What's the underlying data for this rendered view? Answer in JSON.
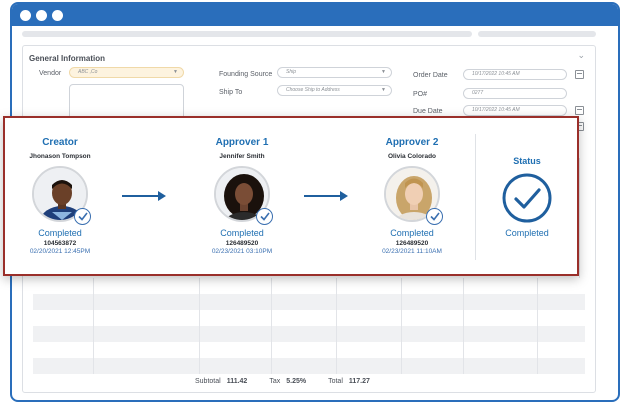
{
  "form": {
    "section_title": "General Information",
    "vendor_label": "Vendor",
    "vendor_value": "ABC ,Co",
    "founding_source_label": "Founding Source",
    "founding_source_value": "Ship",
    "ship_to_label": "Ship To",
    "ship_to_placeholder": "Choose Ship to Address",
    "order_date_label": "Order Date",
    "order_date_value": "10/17/2022  10:45 AM",
    "po_label": "PO#",
    "po_value": "0277",
    "due_date_label": "Due Date",
    "due_date_value": "10/17/2022  10:45 AM"
  },
  "totals": {
    "subtotal_label": "Subtotal",
    "subtotal_value": "111.42",
    "tax_label": "Tax",
    "tax_value": "5.25%",
    "total_label": "Total",
    "total_value": "117.27"
  },
  "workflow": {
    "creator": {
      "role": "Creator",
      "name": "Jhonason Tompson",
      "state": "Completed",
      "code": "104563872",
      "time": "02/20/2021 12:45PM"
    },
    "approver1": {
      "role": "Approver 1",
      "name": "Jennifer Smith",
      "state": "Completed",
      "code": "126489520",
      "time": "02/23/2021 03:10PM"
    },
    "approver2": {
      "role": "Approver 2",
      "name": "Olivia Colorado",
      "state": "Completed",
      "code": "126489520",
      "time": "02/23/2021 11:10AM"
    },
    "status": {
      "role": "Status",
      "state": "Completed"
    }
  },
  "colors": {
    "window_frame": "#2a6ebb",
    "accent_blue": "#1f6fb2",
    "overlay_border": "#9a2f2a"
  },
  "icons": {
    "badge": "check-circle-icon",
    "arrow": "arrow-right-icon",
    "status": "check-circle-icon"
  }
}
